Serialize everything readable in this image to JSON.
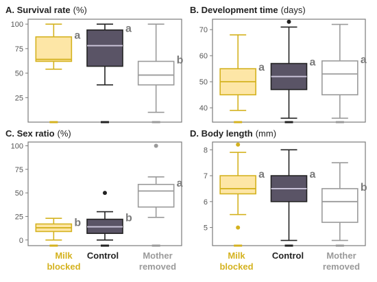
{
  "groups": [
    {
      "line1": "Milk",
      "line2": "blocked",
      "color": "#d4b21f",
      "fill": "#fde6a6"
    },
    {
      "line1": "Control",
      "line2": "",
      "color": "#222222",
      "fill": "#5a5466"
    },
    {
      "line1": "Mother",
      "line2": "removed",
      "color": "#9a9a9a",
      "fill": "#ffffff"
    }
  ],
  "chart_data": [
    {
      "type": "boxplot",
      "panel": "A",
      "title_bold": "A. Survival rate",
      "title_unit": "(%)",
      "ylim": [
        0,
        105
      ],
      "yticks": [
        25,
        50,
        75,
        100
      ],
      "boxes": [
        {
          "min": 54,
          "q1": 62,
          "median": 64,
          "q3": 87,
          "max": 100,
          "sig": "a",
          "floor": true
        },
        {
          "min": 38,
          "q1": 57,
          "median": 78,
          "q3": 94,
          "max": 100,
          "sig": "a",
          "floor": true
        },
        {
          "min": 10,
          "q1": 38,
          "median": 48,
          "q3": 62,
          "max": 100,
          "sig": "b",
          "floor": true
        }
      ],
      "outliers": []
    },
    {
      "type": "boxplot",
      "panel": "B",
      "title_bold": "B. Development time",
      "title_unit": "(days)",
      "ylim": [
        34.5,
        74
      ],
      "yticks": [
        40,
        50,
        60,
        70
      ],
      "boxes": [
        {
          "min": 39,
          "q1": 45,
          "median": 50,
          "q3": 55,
          "max": 68,
          "sig": "a",
          "floor": true
        },
        {
          "min": 36,
          "q1": 47,
          "median": 52,
          "q3": 57,
          "max": 71,
          "sig": "a",
          "floor": true
        },
        {
          "min": 36,
          "q1": 45,
          "median": 53,
          "q3": 58,
          "max": 72,
          "sig": "a",
          "floor": true
        }
      ],
      "outliers": [
        {
          "group": 1,
          "y": 73
        }
      ]
    },
    {
      "type": "boxplot",
      "panel": "C",
      "title_bold": "C. Sex ratio",
      "title_unit": "(%)",
      "ylim": [
        -6,
        104
      ],
      "yticks": [
        0,
        25,
        50,
        75,
        100
      ],
      "boxes": [
        {
          "min": 0,
          "q1": 9,
          "median": 13,
          "q3": 17,
          "max": 23,
          "sig": "b",
          "floor": true
        },
        {
          "min": 0,
          "q1": 7,
          "median": 14,
          "q3": 22,
          "max": 30,
          "sig": "b",
          "floor": true
        },
        {
          "min": 24,
          "q1": 35,
          "median": 52,
          "q3": 59,
          "max": 67,
          "sig": "a",
          "floor": true
        }
      ],
      "outliers": [
        {
          "group": 1,
          "y": 50
        },
        {
          "group": 2,
          "y": 100
        }
      ]
    },
    {
      "type": "boxplot",
      "panel": "D",
      "title_bold": "D. Body length",
      "title_unit": "(mm)",
      "ylim": [
        4.3,
        8.3
      ],
      "yticks": [
        5,
        6,
        7,
        8
      ],
      "boxes": [
        {
          "min": 5.5,
          "q1": 6.3,
          "median": 6.5,
          "q3": 7.0,
          "max": 7.9,
          "sig": "a",
          "floor": true
        },
        {
          "min": 4.5,
          "q1": 6.0,
          "median": 6.5,
          "q3": 7.0,
          "max": 8.0,
          "sig": "a",
          "floor": true
        },
        {
          "min": 4.5,
          "q1": 5.2,
          "median": 6.0,
          "q3": 6.5,
          "max": 7.5,
          "sig": "b",
          "floor": true
        }
      ],
      "outliers": [
        {
          "group": 0,
          "y": 8.2
        },
        {
          "group": 0,
          "y": 5.0
        }
      ]
    }
  ]
}
